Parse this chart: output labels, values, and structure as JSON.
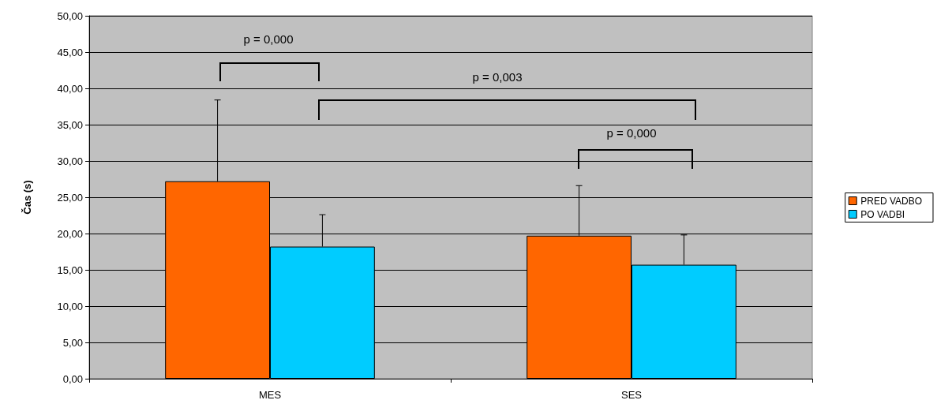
{
  "chart_data": {
    "type": "bar",
    "ylabel": "Čas (s)",
    "categories": [
      "MES",
      "SES"
    ],
    "series": [
      {
        "name": "PRED VADBO",
        "color": "#ff6600",
        "values": [
          27.2,
          19.7
        ],
        "errors": [
          [
            27.2,
            38.4
          ],
          [
            19.7,
            26.6
          ]
        ]
      },
      {
        "name": "PO VADBI",
        "color": "#00ccff",
        "values": [
          18.2,
          15.7
        ],
        "errors": [
          [
            18.2,
            22.6
          ],
          [
            15.7,
            19.8
          ]
        ]
      }
    ],
    "ylim": [
      0,
      50
    ],
    "yticks": [
      {
        "value": 0,
        "label": "0,00"
      },
      {
        "value": 5,
        "label": "5,00"
      },
      {
        "value": 10,
        "label": "10,00"
      },
      {
        "value": 15,
        "label": "15,00"
      },
      {
        "value": 20,
        "label": "20,00"
      },
      {
        "value": 25,
        "label": "25,00"
      },
      {
        "value": 30,
        "label": "30,00"
      },
      {
        "value": 35,
        "label": "35,00"
      },
      {
        "value": 40,
        "label": "40,00"
      },
      {
        "value": 45,
        "label": "45,00"
      },
      {
        "value": 50,
        "label": "50,00"
      }
    ],
    "grid": "y",
    "legend": "right",
    "annotations": [
      "p = 0,000",
      "p = 0,003",
      "p = 0,000"
    ]
  }
}
